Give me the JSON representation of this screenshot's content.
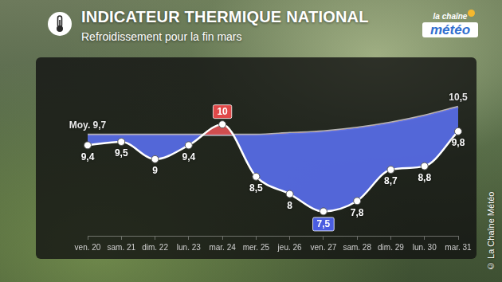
{
  "header": {
    "logo_top": "la chaîne",
    "logo_bottom": "météo"
  },
  "copyright": "© La Chaîne Météo",
  "chart_data": {
    "type": "line",
    "title": "INDICATEUR THERMIQUE NATIONAL",
    "subtitle": "Refroidissement pour la fin mars",
    "categories": [
      "ven. 20",
      "sam. 21",
      "dim. 22",
      "lun. 23",
      "mar. 24",
      "mer. 25",
      "jeu. 26",
      "ven. 27",
      "sam. 28",
      "dim. 29",
      "lun. 30",
      "mar. 31"
    ],
    "series": [
      {
        "color": "#ffffff",
        "marker": "circle",
        "values": [
          9.4,
          9.5,
          9,
          9.4,
          10,
          8.5,
          8,
          7.5,
          7.8,
          8.7,
          8.8,
          9.8
        ],
        "value_labels": [
          "9,4",
          "9,5",
          "9",
          "9,4",
          "10",
          "8,5",
          "8",
          "7,5",
          "7,8",
          "8,7",
          "8,8",
          "9,8"
        ]
      },
      {
        "color": "#b4b4b4",
        "marker": "none",
        "values": [
          9.7,
          9.7,
          9.7,
          9.7,
          9.7,
          9.7,
          9.75,
          9.8,
          9.9,
          10.05,
          10.25,
          10.5
        ],
        "value_labels": [
          "Moy. 9,7",
          null,
          null,
          null,
          null,
          null,
          null,
          null,
          null,
          null,
          null,
          "10,5"
        ]
      }
    ],
    "ylim": [
      6.8,
      11.8
    ],
    "grid": false,
    "data_labels": true,
    "tick_labels": "x"
  }
}
